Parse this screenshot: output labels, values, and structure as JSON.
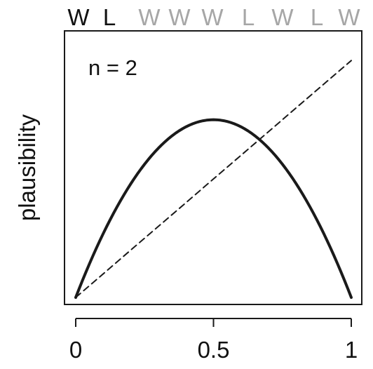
{
  "chart_data": {
    "type": "line",
    "observations": [
      {
        "label": "W",
        "seen": true
      },
      {
        "label": "L",
        "seen": true
      },
      {
        "label": "W",
        "seen": false
      },
      {
        "label": "W",
        "seen": false
      },
      {
        "label": "W",
        "seen": false
      },
      {
        "label": "L",
        "seen": false
      },
      {
        "label": "W",
        "seen": false
      },
      {
        "label": "L",
        "seen": false
      },
      {
        "label": "W",
        "seen": false
      }
    ],
    "annotation": "n = 2",
    "xlabel": "",
    "ylabel": "plausibility",
    "xlim": [
      0,
      1
    ],
    "x_ticks": [
      {
        "value": 0,
        "label": "0"
      },
      {
        "value": 0.5,
        "label": "0.5"
      },
      {
        "value": 1,
        "label": "1"
      }
    ],
    "ylim": [
      0,
      1.5
    ],
    "y_axis_shown": false,
    "grid": false,
    "series": [
      {
        "style": "solid",
        "x": [
          0,
          0.1,
          0.2,
          0.3,
          0.4,
          0.5,
          0.6,
          0.7,
          0.8,
          0.9,
          1
        ],
        "values": [
          0,
          0.36,
          0.64,
          0.84,
          0.96,
          1,
          0.96,
          0.84,
          0.64,
          0.36,
          0
        ]
      },
      {
        "style": "dashed",
        "x": [
          0,
          0.1,
          0.2,
          0.3,
          0.4,
          0.5,
          0.6,
          0.7,
          0.8,
          0.9,
          1
        ],
        "values": [
          0,
          0.133,
          0.267,
          0.4,
          0.533,
          0.667,
          0.8,
          0.933,
          1.067,
          1.2,
          1.333
        ]
      }
    ],
    "colors": {
      "seen": "#111111",
      "unseen": "#a6a6a6",
      "line": "#1a1a1a"
    }
  }
}
